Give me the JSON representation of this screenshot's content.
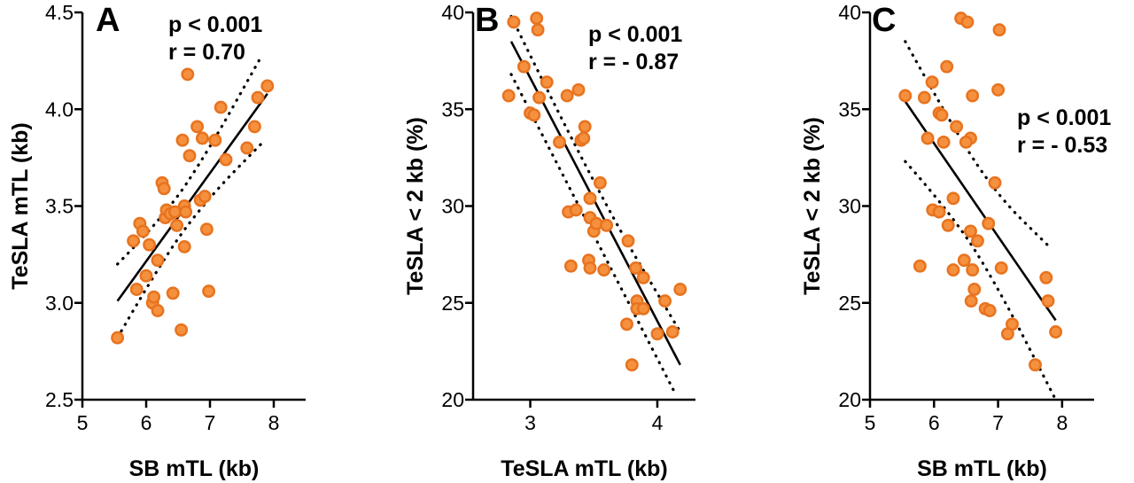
{
  "colors": {
    "point_fill": "#f5913e",
    "point_stroke": "#e8731f",
    "axis": "#000000"
  },
  "chart_data": [
    {
      "type": "scatter",
      "panel": "A",
      "xlabel": "SB mTL (kb)",
      "ylabel": "TeSLA mTL (kb)",
      "xlim": [
        5,
        8.5
      ],
      "ylim": [
        2.5,
        4.5
      ],
      "xticks": [
        5,
        6,
        7,
        8
      ],
      "yticks": [
        2.5,
        3.0,
        3.5,
        4.0,
        4.5
      ],
      "xtick_labels": [
        "5",
        "6",
        "7",
        "8"
      ],
      "ytick_labels": [
        "2.5",
        "3.0",
        "3.5",
        "4.0",
        "4.5"
      ],
      "annotation": [
        "p < 0.001",
        "r = 0.70"
      ],
      "fit_line": [
        [
          5.55,
          3.01
        ],
        [
          7.9,
          4.08
        ]
      ],
      "ci_upper": [
        [
          5.55,
          3.2
        ],
        [
          6.3,
          3.45
        ],
        [
          7.0,
          3.8
        ],
        [
          7.8,
          4.27
        ]
      ],
      "ci_lower": [
        [
          5.55,
          2.82
        ],
        [
          6.3,
          3.25
        ],
        [
          7.0,
          3.55
        ],
        [
          7.8,
          3.82
        ]
      ],
      "points": [
        [
          5.55,
          2.82
        ],
        [
          5.8,
          3.32
        ],
        [
          5.85,
          3.07
        ],
        [
          5.9,
          3.41
        ],
        [
          5.95,
          3.37
        ],
        [
          6.0,
          3.14
        ],
        [
          6.05,
          3.3
        ],
        [
          6.1,
          3.0
        ],
        [
          6.12,
          3.03
        ],
        [
          6.18,
          2.96
        ],
        [
          6.18,
          3.22
        ],
        [
          6.25,
          3.62
        ],
        [
          6.28,
          3.59
        ],
        [
          6.3,
          3.44
        ],
        [
          6.32,
          3.48
        ],
        [
          6.38,
          3.46
        ],
        [
          6.42,
          3.05
        ],
        [
          6.45,
          3.47
        ],
        [
          6.48,
          3.4
        ],
        [
          6.55,
          2.86
        ],
        [
          6.57,
          3.84
        ],
        [
          6.6,
          3.29
        ],
        [
          6.6,
          3.5
        ],
        [
          6.62,
          3.47
        ],
        [
          6.65,
          4.18
        ],
        [
          6.68,
          3.76
        ],
        [
          6.8,
          3.91
        ],
        [
          6.85,
          3.53
        ],
        [
          6.88,
          3.85
        ],
        [
          6.92,
          3.55
        ],
        [
          6.95,
          3.38
        ],
        [
          6.98,
          3.06
        ],
        [
          7.08,
          3.84
        ],
        [
          7.17,
          4.01
        ],
        [
          7.25,
          3.74
        ],
        [
          7.58,
          3.8
        ],
        [
          7.7,
          3.91
        ],
        [
          7.75,
          4.06
        ],
        [
          7.9,
          4.12
        ]
      ]
    },
    {
      "type": "scatter",
      "panel": "B",
      "xlabel": "TeSLA mTL (kb)",
      "ylabel": "TeSLA < 2 kb (%)",
      "xlim": [
        2.55,
        4.3
      ],
      "ylim": [
        20,
        40
      ],
      "xticks": [
        3,
        4
      ],
      "yticks": [
        20,
        25,
        30,
        35,
        40
      ],
      "xtick_labels": [
        "3",
        "4"
      ],
      "ytick_labels": [
        "20",
        "25",
        "30",
        "35",
        "40"
      ],
      "annotation": [
        "p < 0.001",
        "r = - 0.87"
      ],
      "fit_line": [
        [
          2.85,
          38.5
        ],
        [
          4.18,
          21.8
        ]
      ],
      "ci_upper": [
        [
          2.85,
          39.8
        ],
        [
          3.5,
          31.0
        ],
        [
          4.18,
          23.5
        ]
      ],
      "ci_lower": [
        [
          2.85,
          36.8
        ],
        [
          3.5,
          28.5
        ],
        [
          4.15,
          20.2
        ]
      ],
      "points": [
        [
          2.87,
          39.5
        ],
        [
          3.05,
          39.7
        ],
        [
          3.06,
          39.1
        ],
        [
          2.95,
          37.2
        ],
        [
          3.13,
          36.4
        ],
        [
          2.83,
          35.7
        ],
        [
          3.07,
          35.6
        ],
        [
          3.38,
          36.0
        ],
        [
          3.29,
          35.7
        ],
        [
          3.43,
          34.1
        ],
        [
          3.0,
          34.8
        ],
        [
          3.03,
          34.7
        ],
        [
          3.4,
          33.4
        ],
        [
          3.42,
          33.5
        ],
        [
          3.23,
          33.3
        ],
        [
          3.55,
          31.2
        ],
        [
          3.47,
          30.4
        ],
        [
          3.3,
          29.7
        ],
        [
          3.36,
          29.8
        ],
        [
          3.47,
          29.4
        ],
        [
          3.5,
          28.7
        ],
        [
          3.52,
          29.1
        ],
        [
          3.6,
          29.0
        ],
        [
          3.46,
          27.2
        ],
        [
          3.32,
          26.9
        ],
        [
          3.47,
          26.8
        ],
        [
          3.58,
          26.7
        ],
        [
          3.77,
          28.2
        ],
        [
          3.83,
          26.8
        ],
        [
          3.89,
          26.3
        ],
        [
          4.18,
          25.7
        ],
        [
          4.06,
          25.1
        ],
        [
          3.84,
          25.1
        ],
        [
          3.84,
          24.7
        ],
        [
          3.89,
          24.7
        ],
        [
          3.76,
          23.9
        ],
        [
          4.12,
          23.5
        ],
        [
          4.0,
          23.4
        ],
        [
          3.8,
          21.8
        ]
      ]
    },
    {
      "type": "scatter",
      "panel": "C",
      "xlabel": "SB mTL (kb)",
      "ylabel": "TeSLA < 2 kb (%)",
      "xlim": [
        5,
        8.5
      ],
      "ylim": [
        20,
        40
      ],
      "xticks": [
        5,
        6,
        7,
        8
      ],
      "yticks": [
        20,
        25,
        30,
        35,
        40
      ],
      "xtick_labels": [
        "5",
        "6",
        "7",
        "8"
      ],
      "ytick_labels": [
        "20",
        "25",
        "30",
        "35",
        "40"
      ],
      "annotation": [
        "p < 0.001",
        "r = - 0.53"
      ],
      "fit_line": [
        [
          5.55,
          35.4
        ],
        [
          7.9,
          24.1
        ]
      ],
      "ci_upper": [
        [
          5.55,
          38.5
        ],
        [
          6.3,
          34.0
        ],
        [
          7.0,
          30.5
        ],
        [
          7.8,
          27.9
        ]
      ],
      "ci_lower": [
        [
          5.55,
          32.3
        ],
        [
          6.3,
          29.5
        ],
        [
          7.0,
          25.8
        ],
        [
          7.9,
          20.0
        ]
      ],
      "points": [
        [
          6.42,
          39.7
        ],
        [
          6.52,
          39.5
        ],
        [
          7.02,
          39.1
        ],
        [
          6.2,
          37.2
        ],
        [
          5.97,
          36.4
        ],
        [
          7.0,
          36.0
        ],
        [
          5.55,
          35.7
        ],
        [
          5.85,
          35.6
        ],
        [
          6.6,
          35.7
        ],
        [
          6.08,
          34.8
        ],
        [
          6.12,
          34.7
        ],
        [
          6.35,
          34.1
        ],
        [
          6.57,
          33.5
        ],
        [
          5.9,
          33.5
        ],
        [
          6.15,
          33.3
        ],
        [
          6.5,
          33.3
        ],
        [
          6.95,
          31.2
        ],
        [
          6.3,
          30.4
        ],
        [
          5.98,
          29.8
        ],
        [
          6.08,
          29.7
        ],
        [
          6.22,
          29.0
        ],
        [
          6.85,
          29.1
        ],
        [
          6.57,
          28.7
        ],
        [
          6.68,
          28.2
        ],
        [
          5.78,
          26.9
        ],
        [
          6.47,
          27.2
        ],
        [
          6.3,
          26.7
        ],
        [
          6.6,
          26.7
        ],
        [
          7.05,
          26.8
        ],
        [
          6.63,
          25.7
        ],
        [
          6.58,
          25.1
        ],
        [
          6.8,
          24.7
        ],
        [
          6.87,
          24.6
        ],
        [
          7.75,
          26.3
        ],
        [
          7.78,
          25.1
        ],
        [
          7.22,
          23.9
        ],
        [
          7.15,
          23.4
        ],
        [
          7.9,
          23.5
        ],
        [
          7.58,
          21.8
        ]
      ]
    }
  ]
}
